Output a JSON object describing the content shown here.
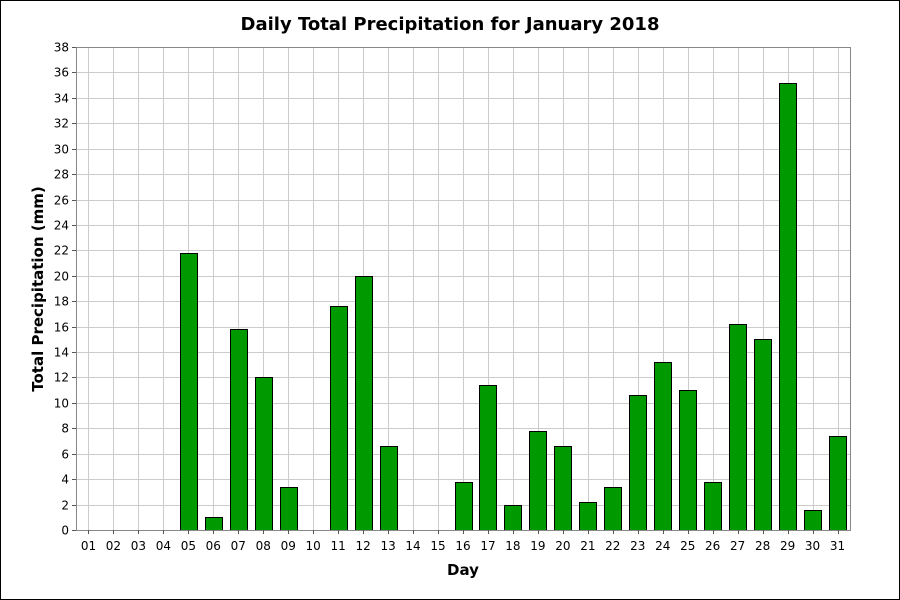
{
  "chart_data": {
    "type": "bar",
    "title": "Daily Total Precipitation for January 2018",
    "xlabel": "Day",
    "ylabel": "Total Precipitation (mm)",
    "ylim": [
      0,
      38
    ],
    "ytick_step": 2,
    "grid": true,
    "legend": "none",
    "bar_color": "#009900",
    "categories": [
      "01",
      "02",
      "03",
      "04",
      "05",
      "06",
      "07",
      "08",
      "09",
      "10",
      "11",
      "12",
      "13",
      "14",
      "15",
      "16",
      "17",
      "18",
      "19",
      "20",
      "21",
      "22",
      "23",
      "24",
      "25",
      "26",
      "27",
      "28",
      "29",
      "30",
      "31"
    ],
    "values": [
      0,
      0,
      0,
      0,
      21.8,
      1.0,
      15.8,
      12.0,
      3.4,
      0,
      17.6,
      20.0,
      6.6,
      0,
      0,
      3.8,
      11.4,
      2.0,
      7.8,
      6.6,
      2.2,
      3.4,
      10.6,
      13.2,
      11.0,
      3.8,
      16.2,
      15.0,
      35.2,
      1.6,
      7.4
    ]
  }
}
